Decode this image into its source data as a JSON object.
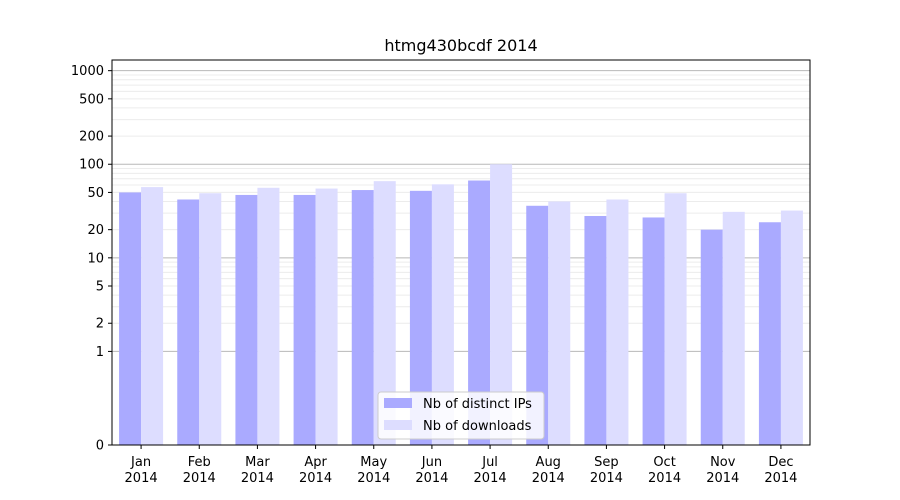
{
  "chart_data": {
    "type": "bar",
    "title": "htmg430bcdf 2014",
    "xlabel": "",
    "ylabel": "",
    "y_scale": "symlog",
    "ylim": [
      0,
      1300
    ],
    "y_ticks": [
      0,
      1,
      2,
      5,
      10,
      20,
      50,
      100,
      200,
      500,
      1000
    ],
    "y_tick_labels": [
      "0",
      "1",
      "2",
      "5",
      "10",
      "20",
      "50",
      "100",
      "200",
      "500",
      "1000"
    ],
    "grid": "horizontal (major and minor)",
    "legend_position": "lower center",
    "categories": [
      "Jan\n2014",
      "Feb\n2014",
      "Mar\n2014",
      "Apr\n2014",
      "May\n2014",
      "Jun\n2014",
      "Jul\n2014",
      "Aug\n2014",
      "Sep\n2014",
      "Oct\n2014",
      "Nov\n2014",
      "Dec\n2014"
    ],
    "category_lines": [
      [
        "Jan",
        "2014"
      ],
      [
        "Feb",
        "2014"
      ],
      [
        "Mar",
        "2014"
      ],
      [
        "Apr",
        "2014"
      ],
      [
        "May",
        "2014"
      ],
      [
        "Jun",
        "2014"
      ],
      [
        "Jul",
        "2014"
      ],
      [
        "Aug",
        "2014"
      ],
      [
        "Sep",
        "2014"
      ],
      [
        "Oct",
        "2014"
      ],
      [
        "Nov",
        "2014"
      ],
      [
        "Dec",
        "2014"
      ]
    ],
    "series": [
      {
        "name": "Nb of distinct IPs",
        "color": "#aaaaff",
        "values": [
          50,
          42,
          47,
          47,
          53,
          52,
          67,
          36,
          28,
          27,
          20,
          24
        ]
      },
      {
        "name": "Nb of downloads",
        "color": "#ddddff",
        "values": [
          57,
          49,
          56,
          55,
          66,
          61,
          100,
          40,
          42,
          49,
          31,
          32
        ]
      }
    ]
  }
}
